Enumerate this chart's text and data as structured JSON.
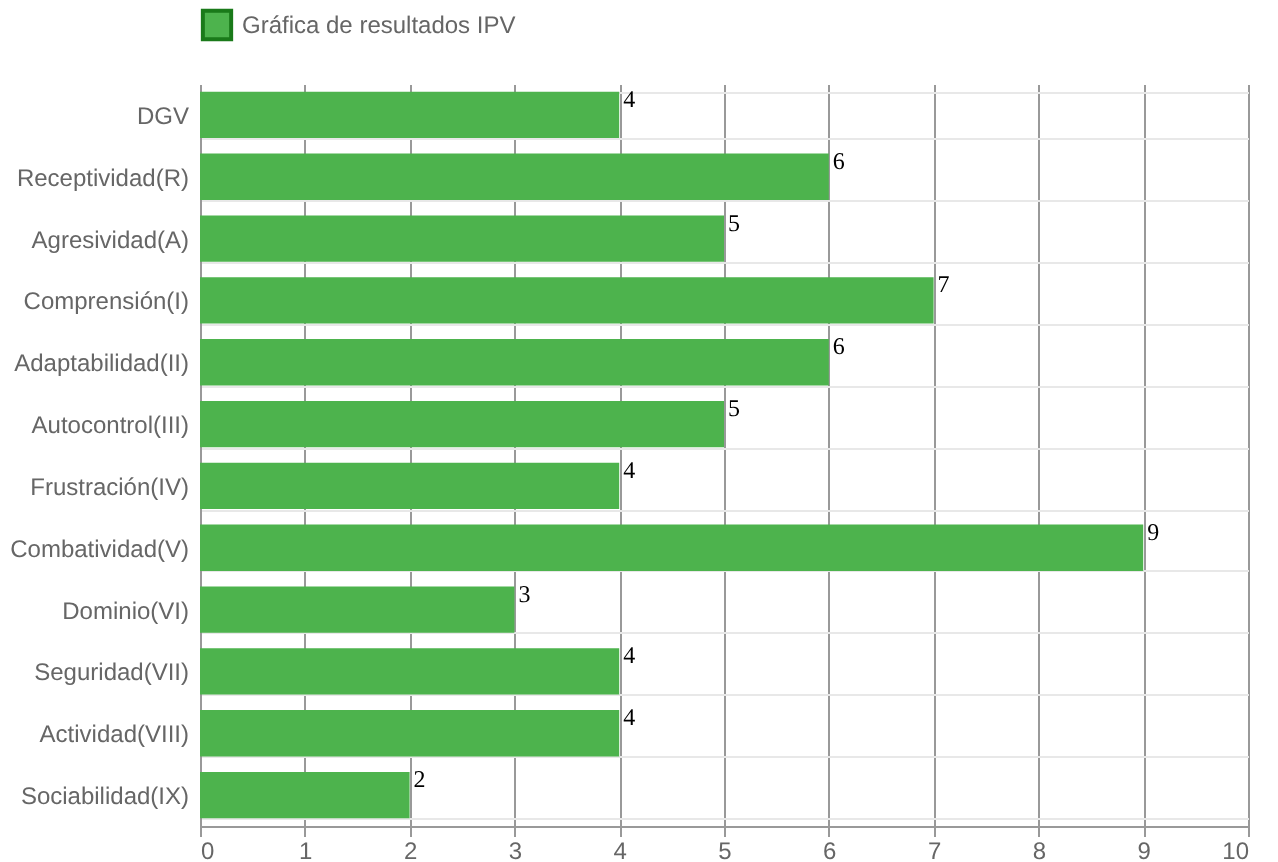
{
  "chart_data": {
    "type": "bar",
    "orientation": "horizontal",
    "categories": [
      "DGV",
      "Receptividad(R)",
      "Agresividad(A)",
      "Comprensión(I)",
      "Adaptabilidad(II)",
      "Autocontrol(III)",
      "Frustración(IV)",
      "Combatividad(V)",
      "Dominio(VI)",
      "Seguridad(VII)",
      "Actividad(VIII)",
      "Sociabilidad(IX)"
    ],
    "series": [
      {
        "name": "Gráfica de resultados IPV",
        "color": "#4db34d",
        "values": [
          4,
          6,
          5,
          7,
          6,
          5,
          4,
          9,
          3,
          4,
          4,
          2
        ]
      }
    ],
    "xlim": [
      0,
      10
    ],
    "xticks": [
      0,
      1,
      2,
      3,
      4,
      5,
      6,
      7,
      8,
      9,
      10
    ],
    "grid": true,
    "legend": "top",
    "data_labels": true
  }
}
